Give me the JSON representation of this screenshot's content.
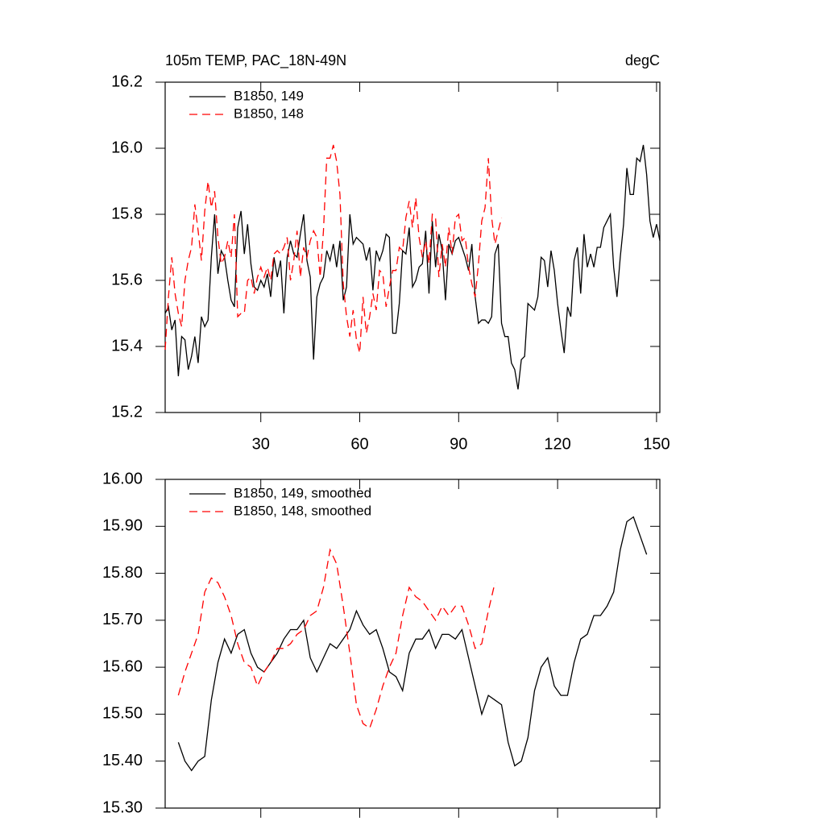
{
  "chart_data": [
    {
      "type": "line",
      "title": "105m TEMP, PAC_18N-49N",
      "units": "degC",
      "x": [
        1,
        2,
        3,
        4,
        5,
        6,
        7,
        8,
        9,
        10,
        11,
        12,
        13,
        14,
        15,
        16,
        17,
        18,
        19,
        20,
        21,
        22,
        23,
        24,
        25,
        26,
        27,
        28,
        29,
        30,
        31,
        32,
        33,
        34,
        35,
        36,
        37,
        38,
        39,
        40,
        41,
        42,
        43,
        44,
        45,
        46,
        47,
        48,
        49,
        50,
        51,
        52,
        53,
        54,
        55,
        56,
        57,
        58,
        59,
        60,
        61,
        62,
        63,
        64,
        65,
        66,
        67,
        68,
        69,
        70,
        71,
        72,
        73,
        74,
        75,
        76,
        77,
        78,
        79,
        80,
        81,
        82,
        83,
        84,
        85,
        86,
        87,
        88,
        89,
        90,
        91,
        92,
        93,
        94,
        95,
        96,
        97,
        98,
        99,
        100,
        101,
        102,
        103,
        104,
        105,
        106,
        107,
        108,
        109,
        110,
        111,
        112,
        113,
        114,
        115,
        116,
        117,
        118,
        119,
        120,
        121,
        122,
        123,
        124,
        125,
        126,
        127,
        128,
        129,
        130,
        131,
        132,
        133,
        134,
        135,
        136,
        137,
        138,
        139,
        140,
        141,
        142,
        143,
        144,
        145,
        146,
        147,
        148,
        149,
        150,
        151
      ],
      "series": [
        {
          "name": "B1850, 149",
          "color": "#000000",
          "line_style": "solid",
          "values": [
            15.5,
            15.52,
            15.45,
            15.48,
            15.31,
            15.43,
            15.42,
            15.33,
            15.37,
            15.43,
            15.35,
            15.49,
            15.46,
            15.48,
            15.67,
            15.8,
            15.62,
            15.69,
            15.67,
            15.6,
            15.54,
            15.52,
            15.76,
            15.81,
            15.68,
            15.77,
            15.65,
            15.58,
            15.57,
            15.6,
            15.58,
            15.62,
            15.55,
            15.67,
            15.61,
            15.66,
            15.5,
            15.67,
            15.72,
            15.68,
            15.67,
            15.74,
            15.8,
            15.66,
            15.61,
            15.36,
            15.55,
            15.59,
            15.61,
            15.69,
            15.66,
            15.71,
            15.64,
            15.72,
            15.54,
            15.58,
            15.8,
            15.71,
            15.73,
            15.72,
            15.71,
            15.66,
            15.7,
            15.57,
            15.69,
            15.66,
            15.69,
            15.74,
            15.73,
            15.44,
            15.44,
            15.53,
            15.69,
            15.68,
            15.76,
            15.58,
            15.6,
            15.64,
            15.65,
            15.75,
            15.56,
            15.78,
            15.64,
            15.74,
            15.69,
            15.54,
            15.71,
            15.68,
            15.72,
            15.73,
            15.7,
            15.67,
            15.63,
            15.71,
            15.55,
            15.47,
            15.48,
            15.48,
            15.47,
            15.49,
            15.68,
            15.71,
            15.47,
            15.43,
            15.43,
            15.35,
            15.33,
            15.27,
            15.36,
            15.37,
            15.53,
            15.52,
            15.51,
            15.55,
            15.67,
            15.66,
            15.58,
            15.69,
            15.63,
            15.53,
            15.45,
            15.38,
            15.52,
            15.49,
            15.66,
            15.7,
            15.56,
            15.74,
            15.64,
            15.68,
            15.64,
            15.7,
            15.7,
            15.76,
            15.78,
            15.8,
            15.64,
            15.55,
            15.67,
            15.77,
            15.94,
            15.86,
            15.86,
            15.97,
            15.96,
            16.01,
            15.92,
            15.78,
            15.73,
            15.77,
            15.72
          ]
        },
        {
          "name": "B1850, 148",
          "color": "#ff0000",
          "line_style": "dashed",
          "values": [
            15.39,
            15.55,
            15.67,
            15.56,
            15.5,
            15.46,
            15.6,
            15.66,
            15.7,
            15.83,
            15.75,
            15.66,
            15.81,
            15.9,
            15.82,
            15.87,
            15.73,
            15.65,
            15.67,
            15.72,
            15.67,
            15.8,
            15.49,
            15.5,
            15.5,
            15.6,
            15.61,
            15.56,
            15.61,
            15.64,
            15.61,
            15.64,
            15.6,
            15.68,
            15.69,
            15.68,
            15.7,
            15.73,
            15.6,
            15.66,
            15.75,
            15.61,
            15.7,
            15.67,
            15.72,
            15.75,
            15.73,
            15.61,
            15.75,
            15.97,
            15.97,
            16.01,
            15.96,
            15.86,
            15.59,
            15.49,
            15.43,
            15.51,
            15.42,
            15.38,
            15.55,
            15.44,
            15.49,
            15.56,
            15.51,
            15.63,
            15.62,
            15.52,
            15.58,
            15.63,
            15.63,
            15.7,
            15.69,
            15.79,
            15.84,
            15.76,
            15.85,
            15.73,
            15.67,
            15.72,
            15.65,
            15.8,
            15.79,
            15.61,
            15.71,
            15.64,
            15.76,
            15.68,
            15.79,
            15.8,
            15.72,
            15.73,
            15.64,
            15.59,
            15.55,
            15.65,
            15.78,
            15.82,
            15.97,
            15.79,
            15.71,
            15.75,
            15.79,
            null,
            null,
            null,
            null,
            null,
            null,
            null,
            null,
            null,
            null,
            null,
            null,
            null,
            null,
            null,
            null,
            null,
            null,
            null,
            null,
            null,
            null,
            null,
            null,
            null,
            null,
            null,
            null,
            null,
            null,
            null,
            null,
            null,
            null,
            null,
            null,
            null,
            null,
            null,
            null,
            null,
            null,
            null,
            null,
            null,
            null,
            null,
            null
          ]
        }
      ],
      "xlim": [
        1,
        151
      ],
      "xticks": [
        30,
        60,
        90,
        120,
        150
      ],
      "show_xtick_labels": true,
      "ylim": [
        15.2,
        16.2
      ],
      "yticks": [
        15.2,
        15.4,
        15.6,
        15.8,
        {
          "value": 16,
          "label": "16.0"
        },
        16.2
      ],
      "legend": "upper left"
    },
    {
      "type": "line",
      "x": [
        5,
        7,
        9,
        11,
        13,
        15,
        17,
        19,
        21,
        23,
        25,
        27,
        29,
        31,
        33,
        35,
        37,
        39,
        41,
        43,
        45,
        47,
        49,
        51,
        53,
        55,
        57,
        59,
        61,
        63,
        65,
        67,
        69,
        71,
        73,
        75,
        77,
        79,
        81,
        83,
        85,
        87,
        89,
        91,
        93,
        95,
        97,
        99,
        101,
        103,
        105,
        107,
        109,
        111,
        113,
        115,
        117,
        119,
        121,
        123,
        125,
        127,
        129,
        131,
        133,
        135,
        137,
        139,
        141,
        143,
        145,
        147
      ],
      "series": [
        {
          "name": "B1850, 149, smoothed",
          "color": "#000000",
          "line_style": "solid",
          "values": [
            15.44,
            15.4,
            15.38,
            15.4,
            15.41,
            15.53,
            15.61,
            15.66,
            15.63,
            15.67,
            15.68,
            15.63,
            15.6,
            15.59,
            15.61,
            15.63,
            15.66,
            15.68,
            15.68,
            15.7,
            15.62,
            15.59,
            15.62,
            15.65,
            15.64,
            15.66,
            15.68,
            15.72,
            15.69,
            15.67,
            15.68,
            15.64,
            15.59,
            15.58,
            15.55,
            15.63,
            15.66,
            15.66,
            15.68,
            15.64,
            15.67,
            15.67,
            15.66,
            15.68,
            15.62,
            15.56,
            15.5,
            15.54,
            15.53,
            15.52,
            15.44,
            15.39,
            15.4,
            15.45,
            15.55,
            15.6,
            15.62,
            15.56,
            15.54,
            15.54,
            15.61,
            15.66,
            15.67,
            15.71,
            15.71,
            15.73,
            15.76,
            15.85,
            15.91,
            15.92,
            15.88,
            15.84
          ]
        },
        {
          "name": "B1850, 148, smoothed",
          "color": "#ff0000",
          "line_style": "dashed",
          "values": [
            15.54,
            15.59,
            15.63,
            15.67,
            15.76,
            15.79,
            15.78,
            15.75,
            15.71,
            15.65,
            15.61,
            15.6,
            15.56,
            15.59,
            15.61,
            15.64,
            15.64,
            15.65,
            15.67,
            15.68,
            15.71,
            15.72,
            15.77,
            15.85,
            15.82,
            15.73,
            15.63,
            15.52,
            15.48,
            15.47,
            15.51,
            15.56,
            15.6,
            15.63,
            15.71,
            15.77,
            15.75,
            15.74,
            15.72,
            15.7,
            15.73,
            15.71,
            15.73,
            15.73,
            15.69,
            15.64,
            15.65,
            15.72,
            15.78,
            null,
            null,
            null,
            null,
            null,
            null,
            null,
            null,
            null,
            null,
            null,
            null,
            null,
            null,
            null,
            null,
            null,
            null,
            null,
            null,
            null,
            null,
            null
          ]
        }
      ],
      "xlim": [
        1,
        151
      ],
      "xticks": [
        30,
        60,
        90,
        120,
        150
      ],
      "show_xtick_labels": false,
      "ylim": [
        15.3,
        16.0
      ],
      "yticks": [
        {
          "value": 15.3,
          "label": "15.30"
        },
        {
          "value": 15.4,
          "label": "15.40"
        },
        {
          "value": 15.5,
          "label": "15.50"
        },
        {
          "value": 15.6,
          "label": "15.60"
        },
        {
          "value": 15.7,
          "label": "15.70"
        },
        {
          "value": 15.8,
          "label": "15.80"
        },
        {
          "value": 15.9,
          "label": "15.90"
        },
        {
          "value": 16,
          "label": "16.00"
        }
      ],
      "legend": "upper left"
    }
  ]
}
